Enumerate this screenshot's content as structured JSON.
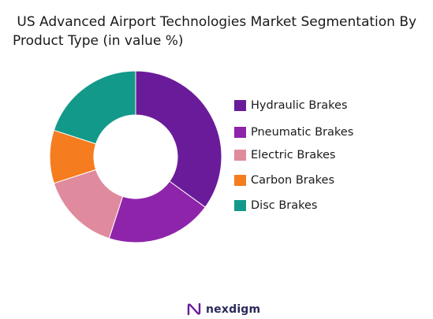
{
  "title": " US Advanced Airport Technologies Market Segmentation By\nProduct Type (in value %)",
  "chart_data": {
    "type": "pie",
    "categories": [
      "Hydraulic Brakes",
      "Pneumatic Brakes",
      "Electric Brakes",
      "Carbon Brakes",
      "Disc Brakes"
    ],
    "values": [
      35,
      20,
      15,
      10,
      20
    ],
    "colors": [
      "#6a1b9a",
      "#8e24aa",
      "#e08a9e",
      "#f57c1f",
      "#13998a"
    ],
    "legend_placement": "right",
    "donut": true
  },
  "brand": {
    "name": "nexdigm",
    "icon": "nexdigm-logo-icon"
  }
}
